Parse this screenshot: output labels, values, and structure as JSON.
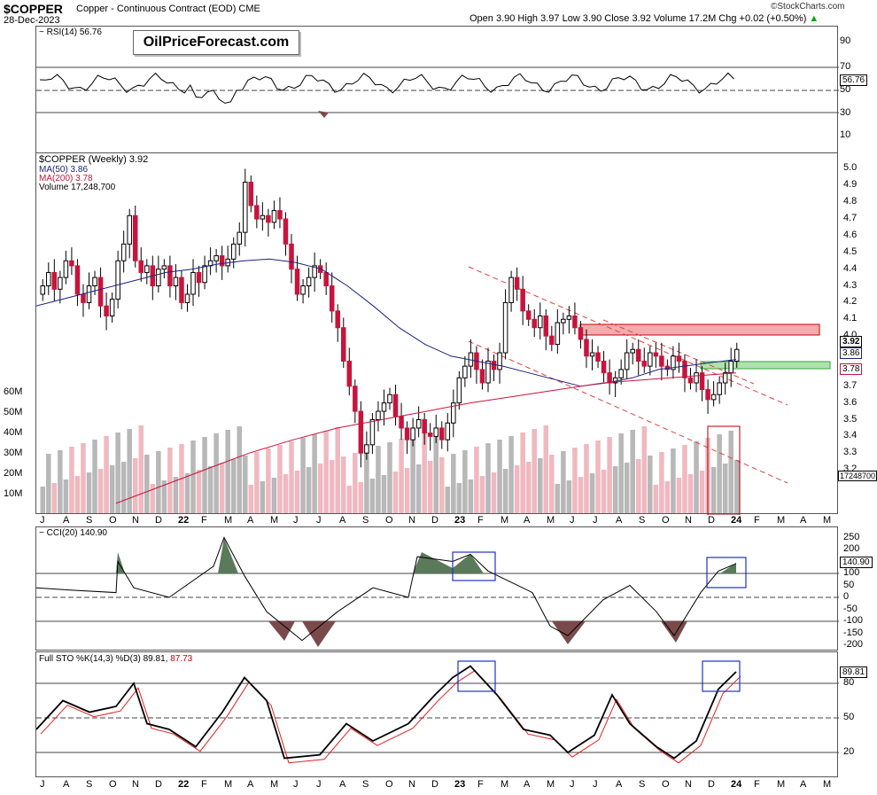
{
  "header": {
    "symbol": "$COPPER",
    "name": "Copper - Continuous Contract (EOD)",
    "exchange": "CME",
    "date": "28-Dec-2023",
    "ohlc": "Open 3.90   High 3.97   Low 3.90   Close 3.92   Volume 17.2M   Chg +0.02 (+0.50%)",
    "chg_arrow": "▲",
    "credit": "©StockCharts.com",
    "logo": "OilPriceForecast.com"
  },
  "colors": {
    "up": "#ffffff",
    "down": "#c8143c",
    "ma50": "#1a237e",
    "ma200": "#c8143c",
    "vol_up": "#b8b8b8",
    "vol_down": "#f0b8c0",
    "resist": "#e88a8a",
    "support": "#8fd58f",
    "box": "#2030c8",
    "cci_pos": "#5a7a5a",
    "cci_neg": "#7a4a4a"
  },
  "rsi": {
    "label": "RSI(14) 56.76",
    "tag": "56.76",
    "ticks": [
      "90",
      "70",
      "50",
      "30",
      "10"
    ]
  },
  "price_legend": {
    "title": "$COPPER (Weekly) 3.92",
    "ma50": "MA(50) 3.86",
    "ma200": "MA(200) 3.78",
    "volume": "Volume 17,248,700"
  },
  "price_tags": {
    "close": "3.92",
    "ma50": "3.86",
    "ma200": "3.78",
    "volume": "17248700"
  },
  "price_ticks": [
    "5.0",
    "4.9",
    "4.8",
    "4.7",
    "4.6",
    "4.5",
    "4.4",
    "4.3",
    "4.2",
    "4.1",
    "4.0",
    "3.9",
    "3.8",
    "3.7",
    "3.6",
    "3.5",
    "3.4",
    "3.3",
    "3.2"
  ],
  "volume_ticks": [
    "60M",
    "50M",
    "40M",
    "30M",
    "20M",
    "10M"
  ],
  "cci": {
    "label": "CCI(20) 140.90",
    "tag": "140.90",
    "ticks": [
      "250",
      "200",
      "150",
      "100",
      "50",
      "0",
      "-50",
      "-100",
      "-150",
      "-200"
    ]
  },
  "sto": {
    "label": "Full STO %K(14,3) %D(3) 89.81,",
    "d_value": "87.73",
    "tag": "89.81",
    "ticks": [
      "80",
      "50",
      "20"
    ]
  },
  "months": [
    "J",
    "A",
    "S",
    "O",
    "N",
    "D",
    "22",
    "F",
    "M",
    "A",
    "M",
    "J",
    "J",
    "A",
    "S",
    "O",
    "N",
    "D",
    "23",
    "F",
    "M",
    "A",
    "M",
    "J",
    "J",
    "A",
    "S",
    "O",
    "N",
    "D",
    "24",
    "F",
    "M",
    "A",
    "M"
  ],
  "chart_data": {
    "type": "candlestick",
    "title": "$COPPER (Weekly)",
    "period": "Jul 2021 - Dec 2023",
    "last": {
      "open": 3.9,
      "high": 3.97,
      "low": 3.9,
      "close": 3.92,
      "volume": 17248700,
      "chg": 0.02,
      "chg_pct": 0.5
    },
    "closes": [
      4.3,
      4.38,
      4.28,
      4.35,
      4.45,
      4.42,
      4.25,
      4.2,
      4.3,
      4.35,
      4.18,
      4.12,
      4.22,
      4.45,
      4.55,
      4.72,
      4.45,
      4.38,
      4.42,
      4.3,
      4.4,
      4.42,
      4.3,
      4.35,
      4.2,
      4.25,
      4.38,
      4.32,
      4.42,
      4.45,
      4.48,
      4.42,
      4.46,
      4.55,
      4.62,
      4.92,
      4.78,
      4.7,
      4.72,
      4.68,
      4.75,
      4.7,
      4.55,
      4.4,
      4.25,
      4.3,
      4.35,
      4.42,
      4.38,
      4.3,
      4.15,
      4.05,
      3.85,
      3.7,
      3.55,
      3.3,
      3.35,
      3.5,
      3.55,
      3.6,
      3.65,
      3.52,
      3.45,
      3.38,
      3.45,
      3.5,
      3.42,
      3.4,
      3.45,
      3.38,
      3.48,
      3.6,
      3.75,
      3.82,
      3.9,
      3.8,
      3.72,
      3.85,
      3.8,
      3.9,
      4.2,
      4.35,
      4.28,
      4.15,
      4.1,
      4.05,
      4.12,
      4.0,
      3.95,
      4.08,
      4.1,
      4.12,
      4.05,
      3.98,
      3.88,
      3.9,
      3.85,
      3.78,
      3.72,
      3.75,
      3.8,
      3.9,
      3.92,
      3.85,
      3.82,
      3.9,
      3.88,
      3.82,
      3.8,
      3.88,
      3.85,
      3.75,
      3.72,
      3.78,
      3.68,
      3.62,
      3.65,
      3.72,
      3.78,
      3.85,
      3.92
    ],
    "ma50": [
      4.18,
      4.22,
      4.26,
      4.3,
      4.34,
      4.38,
      4.4,
      4.43,
      4.45,
      4.46,
      4.44,
      4.4,
      4.3,
      4.18,
      4.05,
      3.95,
      3.88,
      3.85,
      3.82,
      3.78,
      3.74,
      3.7,
      3.72,
      3.75,
      3.8,
      3.82,
      3.84,
      3.86
    ],
    "ma200": [
      3.0,
      3.1,
      3.2,
      3.3,
      3.38,
      3.45,
      3.5,
      3.55,
      3.6,
      3.64,
      3.68,
      3.72,
      3.74,
      3.76,
      3.78
    ],
    "resistance_zone": [
      3.98,
      4.02
    ],
    "support_zone": [
      3.82,
      3.85
    ],
    "rsi_last": 56.76,
    "cci_last": 140.9,
    "sto_k_last": 89.81,
    "sto_d_last": 87.73,
    "volume_range": [
      0,
      60000000
    ]
  }
}
